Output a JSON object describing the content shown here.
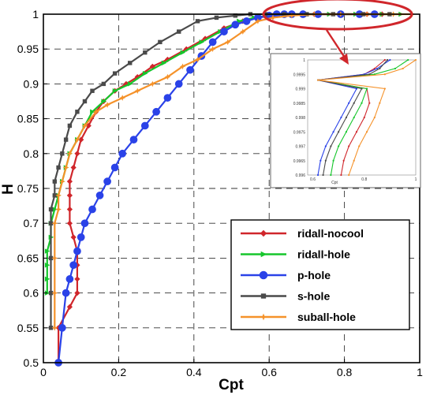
{
  "chart_data": {
    "type": "line",
    "title": "",
    "xlabel": "Cpt",
    "ylabel": "H",
    "xlim": [
      0,
      1
    ],
    "ylim": [
      0.5,
      1
    ],
    "xticks": [
      "0",
      "0.2",
      "0.4",
      "0.6",
      "0.8",
      "1"
    ],
    "yticks": [
      "0.5",
      "0.55",
      "0.6",
      "0.65",
      "0.7",
      "0.75",
      "0.8",
      "0.85",
      "0.9",
      "0.95",
      "1"
    ],
    "grid": true,
    "legend_position": "lower-right",
    "series": [
      {
        "name": "ridall-nocool",
        "color": "#d0262b",
        "marker": "diamond",
        "x": [
          0.04,
          0.04,
          0.07,
          0.09,
          0.09,
          0.09,
          0.09,
          0.08,
          0.07,
          0.07,
          0.07,
          0.07,
          0.08,
          0.09,
          0.1,
          0.12,
          0.14,
          0.16,
          0.19,
          0.22,
          0.25,
          0.29,
          0.33,
          0.38,
          0.43,
          0.48,
          0.53,
          0.57,
          0.61,
          0.66,
          0.72,
          0.79,
          0.86,
          0.9
        ],
        "y": [
          0.5,
          0.55,
          0.58,
          0.6,
          0.62,
          0.64,
          0.66,
          0.68,
          0.7,
          0.72,
          0.74,
          0.76,
          0.78,
          0.8,
          0.82,
          0.84,
          0.86,
          0.875,
          0.89,
          0.9,
          0.91,
          0.925,
          0.935,
          0.95,
          0.965,
          0.98,
          0.99,
          0.995,
          0.998,
          1.0,
          1.0,
          1.0,
          1.0,
          1.0
        ]
      },
      {
        "name": "ridall-hole",
        "color": "#16c62c",
        "marker": "triangle",
        "x": [
          0.01,
          0.01,
          0.01,
          0.01,
          0.02,
          0.02,
          0.03,
          0.04,
          0.05,
          0.06,
          0.07,
          0.09,
          0.11,
          0.13,
          0.16,
          0.19,
          0.23,
          0.27,
          0.32,
          0.37,
          0.42,
          0.47,
          0.52,
          0.56,
          0.6,
          0.65,
          0.7,
          0.76,
          0.83,
          0.9,
          0.95
        ],
        "y": [
          0.6,
          0.62,
          0.64,
          0.66,
          0.68,
          0.7,
          0.72,
          0.74,
          0.76,
          0.78,
          0.8,
          0.82,
          0.84,
          0.86,
          0.875,
          0.89,
          0.9,
          0.915,
          0.93,
          0.945,
          0.96,
          0.975,
          0.99,
          0.995,
          0.998,
          1.0,
          1.0,
          1.0,
          1.0,
          1.0,
          1.0
        ]
      },
      {
        "name": "p-hole",
        "color": "#2a42e8",
        "marker": "circle",
        "x": [
          0.04,
          0.05,
          0.06,
          0.07,
          0.08,
          0.09,
          0.1,
          0.11,
          0.13,
          0.15,
          0.17,
          0.19,
          0.21,
          0.24,
          0.27,
          0.3,
          0.33,
          0.36,
          0.39,
          0.42,
          0.45,
          0.48,
          0.51,
          0.54,
          0.57,
          0.6,
          0.62,
          0.64,
          0.66,
          0.69,
          0.73,
          0.79,
          0.84,
          0.88
        ],
        "y": [
          0.5,
          0.55,
          0.6,
          0.62,
          0.64,
          0.66,
          0.68,
          0.7,
          0.72,
          0.74,
          0.76,
          0.78,
          0.8,
          0.82,
          0.84,
          0.86,
          0.88,
          0.9,
          0.92,
          0.94,
          0.96,
          0.975,
          0.985,
          0.99,
          0.995,
          0.998,
          1.0,
          1.0,
          1.0,
          1.0,
          1.0,
          1.0,
          1.0,
          1.0
        ]
      },
      {
        "name": "s-hole",
        "color": "#4a4a4a",
        "marker": "square",
        "x": [
          0.02,
          0.02,
          0.02,
          0.02,
          0.02,
          0.03,
          0.03,
          0.04,
          0.05,
          0.06,
          0.07,
          0.09,
          0.11,
          0.13,
          0.16,
          0.19,
          0.23,
          0.27,
          0.31,
          0.36,
          0.41,
          0.46,
          0.51,
          0.55,
          0.59,
          0.64,
          0.7,
          0.77,
          0.85,
          0.92
        ],
        "y": [
          0.55,
          0.6,
          0.65,
          0.7,
          0.72,
          0.74,
          0.76,
          0.78,
          0.8,
          0.82,
          0.84,
          0.86,
          0.875,
          0.89,
          0.9,
          0.915,
          0.93,
          0.945,
          0.96,
          0.975,
          0.99,
          0.995,
          0.998,
          1.0,
          1.0,
          1.0,
          1.0,
          1.0,
          1.0,
          1.0
        ]
      },
      {
        "name": "suball-hole",
        "color": "#f5922a",
        "marker": "star",
        "x": [
          0.03,
          0.03,
          0.03,
          0.03,
          0.04,
          0.04,
          0.05,
          0.06,
          0.07,
          0.09,
          0.11,
          0.14,
          0.17,
          0.21,
          0.25,
          0.29,
          0.33,
          0.37,
          0.41,
          0.45,
          0.49,
          0.53,
          0.57,
          0.61,
          0.66,
          0.72,
          0.79,
          0.86,
          0.93,
          0.98
        ],
        "y": [
          0.55,
          0.6,
          0.65,
          0.7,
          0.72,
          0.74,
          0.76,
          0.78,
          0.8,
          0.82,
          0.84,
          0.86,
          0.87,
          0.88,
          0.89,
          0.9,
          0.91,
          0.925,
          0.935,
          0.95,
          0.96,
          0.975,
          0.99,
          0.995,
          0.998,
          1.0,
          1.0,
          1.0,
          1.0,
          1.0
        ]
      }
    ],
    "annotations": [
      {
        "type": "ellipse",
        "color": "#d0262b",
        "description": "highlight near H=1"
      },
      {
        "type": "arrow",
        "color": "#d0262b"
      }
    ],
    "inset": {
      "xlim": [
        0.58,
        1.0
      ],
      "ylim": [
        0.996,
        1.0
      ],
      "xticks": [
        "0.6",
        "0.8",
        "1"
      ],
      "yticks": [
        "0.996",
        "0.9965",
        "0.997",
        "0.9975",
        "0.998",
        "0.9985",
        "0.999",
        "0.9995",
        "1"
      ],
      "xlabel": "Cpt",
      "series": [
        {
          "color": "#d0262b",
          "x": [
            0.71,
            0.72,
            0.74,
            0.77,
            0.8,
            0.82,
            0.81,
            0.62,
            0.8,
            0.84,
            0.88
          ],
          "y": [
            0.996,
            0.9965,
            0.997,
            0.9975,
            0.998,
            0.9985,
            0.999,
            0.9993,
            0.9995,
            0.9997,
            1.0
          ]
        },
        {
          "color": "#16c62c",
          "x": [
            0.67,
            0.68,
            0.7,
            0.73,
            0.76,
            0.79,
            0.81,
            0.62,
            0.84,
            0.92,
            0.97
          ],
          "y": [
            0.996,
            0.9965,
            0.997,
            0.9975,
            0.998,
            0.9985,
            0.999,
            0.9993,
            0.9995,
            0.9997,
            1.0
          ]
        },
        {
          "color": "#2a42e8",
          "x": [
            0.62,
            0.63,
            0.65,
            0.68,
            0.71,
            0.74,
            0.77,
            0.62,
            0.8,
            0.85,
            0.9
          ],
          "y": [
            0.996,
            0.9965,
            0.997,
            0.9975,
            0.998,
            0.9985,
            0.999,
            0.9993,
            0.9995,
            0.9997,
            1.0
          ]
        },
        {
          "color": "#4a4a4a",
          "x": [
            0.64,
            0.65,
            0.67,
            0.7,
            0.73,
            0.76,
            0.79,
            0.62,
            0.82,
            0.86,
            0.89
          ],
          "y": [
            0.996,
            0.9965,
            0.997,
            0.9975,
            0.998,
            0.9985,
            0.999,
            0.9993,
            0.9995,
            0.9997,
            1.0
          ]
        },
        {
          "color": "#f5922a",
          "x": [
            0.74,
            0.76,
            0.78,
            0.81,
            0.84,
            0.86,
            0.88,
            0.62,
            0.88,
            0.95,
            1.0
          ],
          "y": [
            0.996,
            0.9965,
            0.997,
            0.9975,
            0.998,
            0.9985,
            0.999,
            0.9993,
            0.9995,
            0.9997,
            1.0
          ]
        }
      ]
    }
  }
}
